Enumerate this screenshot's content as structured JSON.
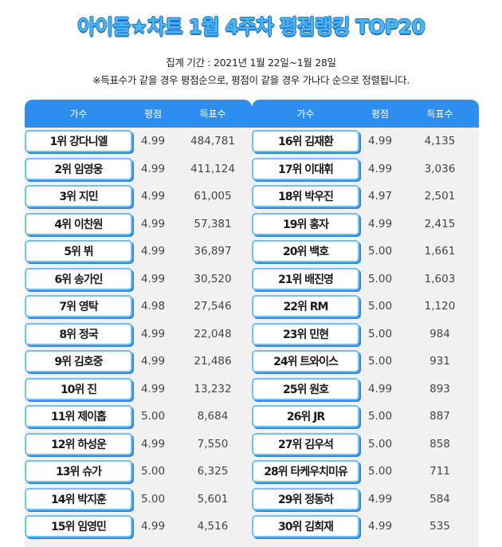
{
  "title": "아이돌★차트 1월 4주차 평점랭킹 TOP20",
  "period": "집계 기간 : 2021년 1월 22일~1월 28일",
  "note": "※득표수가 같을 경우 평점순으로, 평점이 같을 경우 가나다 순으로 정렬됩니다.",
  "columns": {
    "name": "가수",
    "score": "평점",
    "votes": "득표수"
  },
  "left_rows": [
    {
      "name": "1위 강다니엘",
      "score": "4.99",
      "votes": "484,781"
    },
    {
      "name": "2위 임영웅",
      "score": "4.99",
      "votes": "411,124"
    },
    {
      "name": "3위 지민",
      "score": "4.99",
      "votes": "61,005"
    },
    {
      "name": "4위 이찬원",
      "score": "4.99",
      "votes": "57,381"
    },
    {
      "name": "5위 뷔",
      "score": "4.99",
      "votes": "36,897"
    },
    {
      "name": "6위 송가인",
      "score": "4.99",
      "votes": "30,520"
    },
    {
      "name": "7위 영탁",
      "score": "4.98",
      "votes": "27,546"
    },
    {
      "name": "8위 정국",
      "score": "4.99",
      "votes": "22,048"
    },
    {
      "name": "9위 김호중",
      "score": "4.99",
      "votes": "21,486"
    },
    {
      "name": "10위 진",
      "score": "4.99",
      "votes": "13,232"
    },
    {
      "name": "11위 제이홉",
      "score": "5.00",
      "votes": "8,684"
    },
    {
      "name": "12위 하성운",
      "score": "4.99",
      "votes": "7,550"
    },
    {
      "name": "13위 슈가",
      "score": "5.00",
      "votes": "6,325"
    },
    {
      "name": "14위 박지훈",
      "score": "5.00",
      "votes": "5,601"
    },
    {
      "name": "15위 임영민",
      "score": "4.99",
      "votes": "4,516"
    }
  ],
  "right_rows": [
    {
      "name": "16위 김재환",
      "score": "4.99",
      "votes": "4,135"
    },
    {
      "name": "17위 이대휘",
      "score": "4.99",
      "votes": "3,036"
    },
    {
      "name": "18위 박우진",
      "score": "4.97",
      "votes": "2,501"
    },
    {
      "name": "19위 홍자",
      "score": "4.99",
      "votes": "2,415"
    },
    {
      "name": "20위 백호",
      "score": "5.00",
      "votes": "1,661"
    },
    {
      "name": "21위 배진영",
      "score": "5.00",
      "votes": "1,603"
    },
    {
      "name": "22위 RM",
      "score": "5.00",
      "votes": "1,120"
    },
    {
      "name": "23위 민현",
      "score": "5.00",
      "votes": "984"
    },
    {
      "name": "24위 트와이스",
      "score": "5.00",
      "votes": "931"
    },
    {
      "name": "25위 원호",
      "score": "4.99",
      "votes": "893"
    },
    {
      "name": "26위 JR",
      "score": "5.00",
      "votes": "887"
    },
    {
      "name": "27위 김우석",
      "score": "5.00",
      "votes": "858"
    },
    {
      "name": "28위 타케우치미유",
      "score": "5.00",
      "votes": "711"
    },
    {
      "name": "29위 정동하",
      "score": "4.99",
      "votes": "584"
    },
    {
      "name": "30위 김희재",
      "score": "4.99",
      "votes": "535"
    }
  ]
}
